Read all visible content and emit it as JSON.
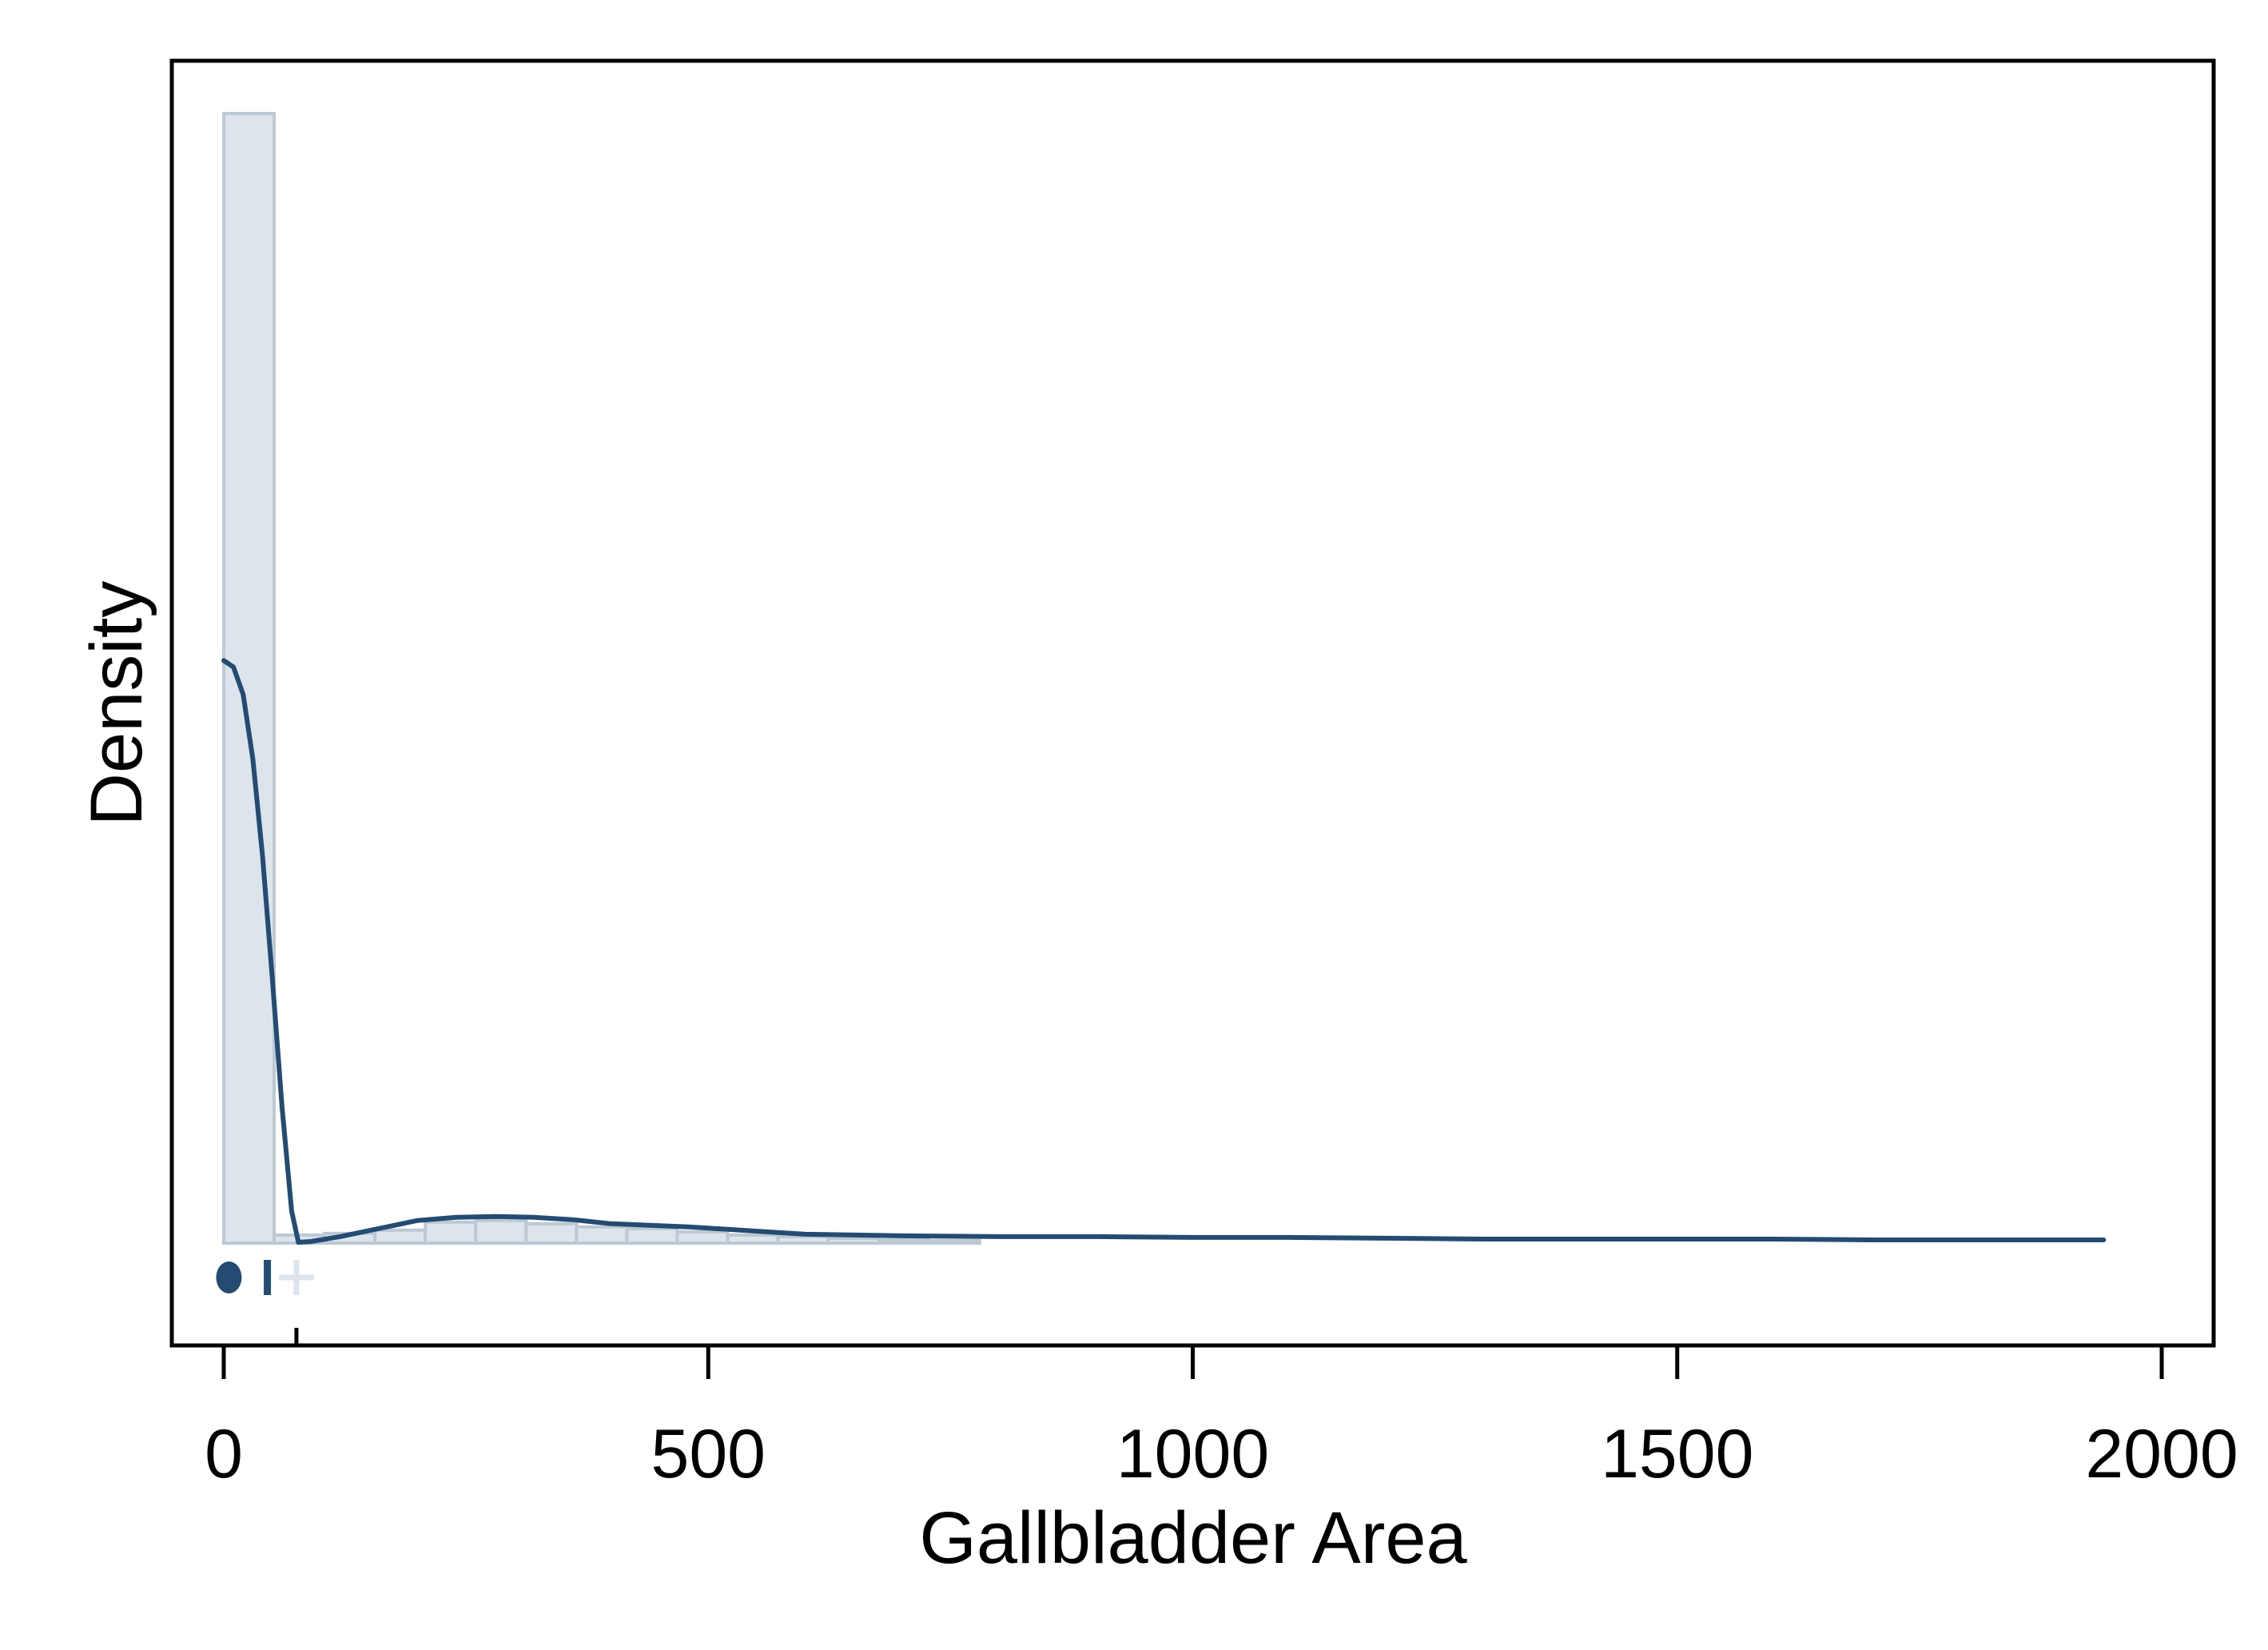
{
  "chart_data": {
    "type": "histogram-density",
    "title": "",
    "xlabel": "Gallbladder Area",
    "ylabel": "Density",
    "xlim": [
      -55,
      2055
    ],
    "ylim": [
      -0.0013,
      0.0145
    ],
    "x_ticks": [
      0,
      500,
      1000,
      1500,
      2000
    ],
    "x_tick_labels": [
      "0",
      "500",
      "1000",
      "1500",
      "2000"
    ],
    "y_ticks_shown": false,
    "grid": false,
    "legend": "none",
    "histogram": {
      "bin_width": 52,
      "bins": [
        {
          "start": 0,
          "end": 52,
          "density": 0.014
        },
        {
          "start": 52,
          "end": 104,
          "density": 0.0001
        },
        {
          "start": 104,
          "end": 156,
          "density": 0.00012
        },
        {
          "start": 156,
          "end": 208,
          "density": 0.00016
        },
        {
          "start": 208,
          "end": 260,
          "density": 0.00026
        },
        {
          "start": 260,
          "end": 312,
          "density": 0.00028
        },
        {
          "start": 312,
          "end": 364,
          "density": 0.00024
        },
        {
          "start": 364,
          "end": 416,
          "density": 0.0002
        },
        {
          "start": 416,
          "end": 468,
          "density": 0.00018
        },
        {
          "start": 468,
          "end": 520,
          "density": 0.00014
        },
        {
          "start": 520,
          "end": 572,
          "density": 0.0001
        },
        {
          "start": 572,
          "end": 624,
          "density": 8e-05
        },
        {
          "start": 624,
          "end": 676,
          "density": 6e-05
        },
        {
          "start": 676,
          "end": 728,
          "density": 4e-05
        },
        {
          "start": 728,
          "end": 780,
          "density": 3e-05
        }
      ]
    },
    "density_curve": {
      "x": [
        0,
        10,
        20,
        30,
        40,
        50,
        60,
        70,
        77,
        90,
        120,
        160,
        200,
        240,
        280,
        320,
        360,
        400,
        440,
        480,
        520,
        560,
        600,
        700,
        800,
        900,
        1000,
        1100,
        1200,
        1300,
        1400,
        1500,
        1600,
        1700,
        1800,
        1900,
        1940
      ],
      "y": [
        0.00722,
        0.00714,
        0.0068,
        0.006,
        0.0048,
        0.0033,
        0.0017,
        0.0004,
        1e-05,
        2e-05,
        8e-05,
        0.00018,
        0.00028,
        0.00032,
        0.00033,
        0.00032,
        0.00029,
        0.00024,
        0.00022,
        0.0002,
        0.00017,
        0.00014,
        0.00011,
        9e-05,
        8e-05,
        8e-05,
        7e-05,
        7e-05,
        6e-05,
        5e-05,
        5e-05,
        5e-05,
        5e-05,
        4e-05,
        4e-05,
        4e-05,
        4e-05
      ]
    },
    "markers": [
      {
        "kind": "filled-dot",
        "x": 2
      },
      {
        "kind": "bar",
        "x": 45
      },
      {
        "kind": "plus",
        "x": 75
      }
    ],
    "axis_tick_mark_x": 75,
    "colors": {
      "curve": "#244b72",
      "bar_fill": "#dde4eb",
      "bar_edge": "#bcc9d4",
      "marker_dark": "#244b72",
      "marker_light": "#dde4eb",
      "frame": "#000000"
    }
  }
}
